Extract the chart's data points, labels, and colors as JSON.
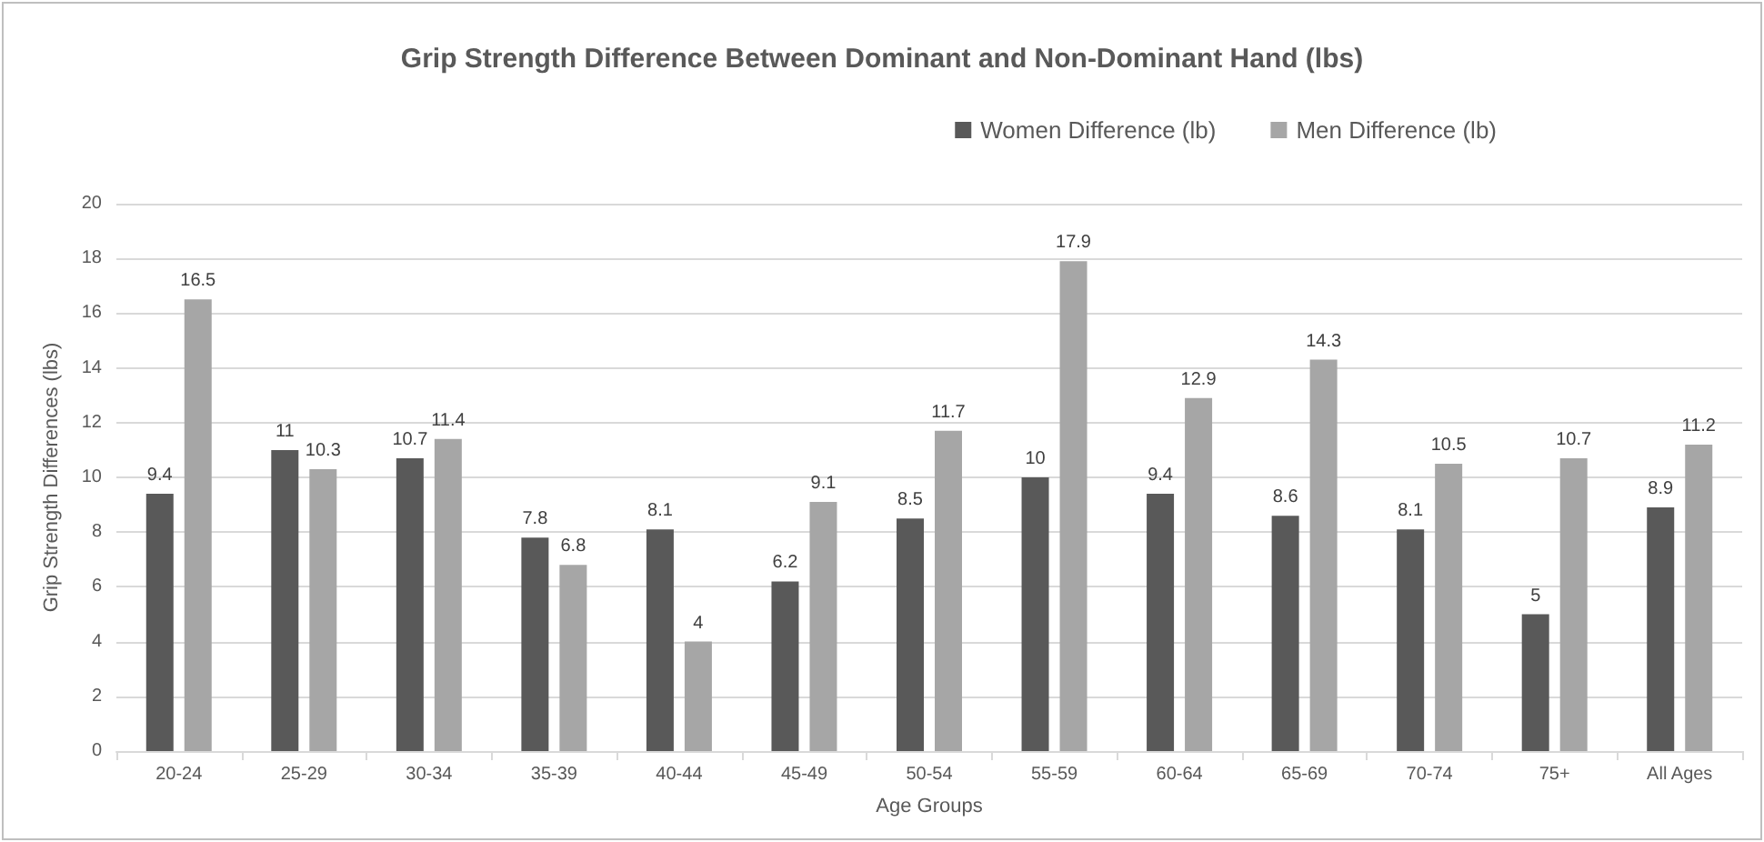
{
  "chart_data": {
    "type": "bar",
    "title": "Grip Strength Difference Between Dominant and Non-Dominant Hand (lbs)",
    "xlabel": "Age Groups",
    "ylabel": "Grip Strength Differences (lbs)",
    "categories": [
      "20-24",
      "25-29",
      "30-34",
      "35-39",
      "40-44",
      "45-49",
      "50-54",
      "55-59",
      "60-64",
      "65-69",
      "70-74",
      "75+",
      "All Ages"
    ],
    "series": [
      {
        "name": "Women Difference (lb)",
        "color": "#595959",
        "values": [
          9.4,
          11,
          10.7,
          7.8,
          8.1,
          6.2,
          8.5,
          10,
          9.4,
          8.6,
          8.1,
          5,
          8.9
        ]
      },
      {
        "name": "Men Difference (lb)",
        "color": "#a6a6a6",
        "values": [
          16.5,
          10.3,
          11.4,
          6.8,
          4,
          9.1,
          11.7,
          17.9,
          12.9,
          14.3,
          10.5,
          10.7,
          11.2
        ]
      }
    ],
    "ylim": [
      0,
      20
    ],
    "yticks": [
      0,
      2,
      4,
      6,
      8,
      10,
      12,
      14,
      16,
      18,
      20
    ],
    "grid": "y",
    "legend": "top right",
    "data_labels": true
  }
}
